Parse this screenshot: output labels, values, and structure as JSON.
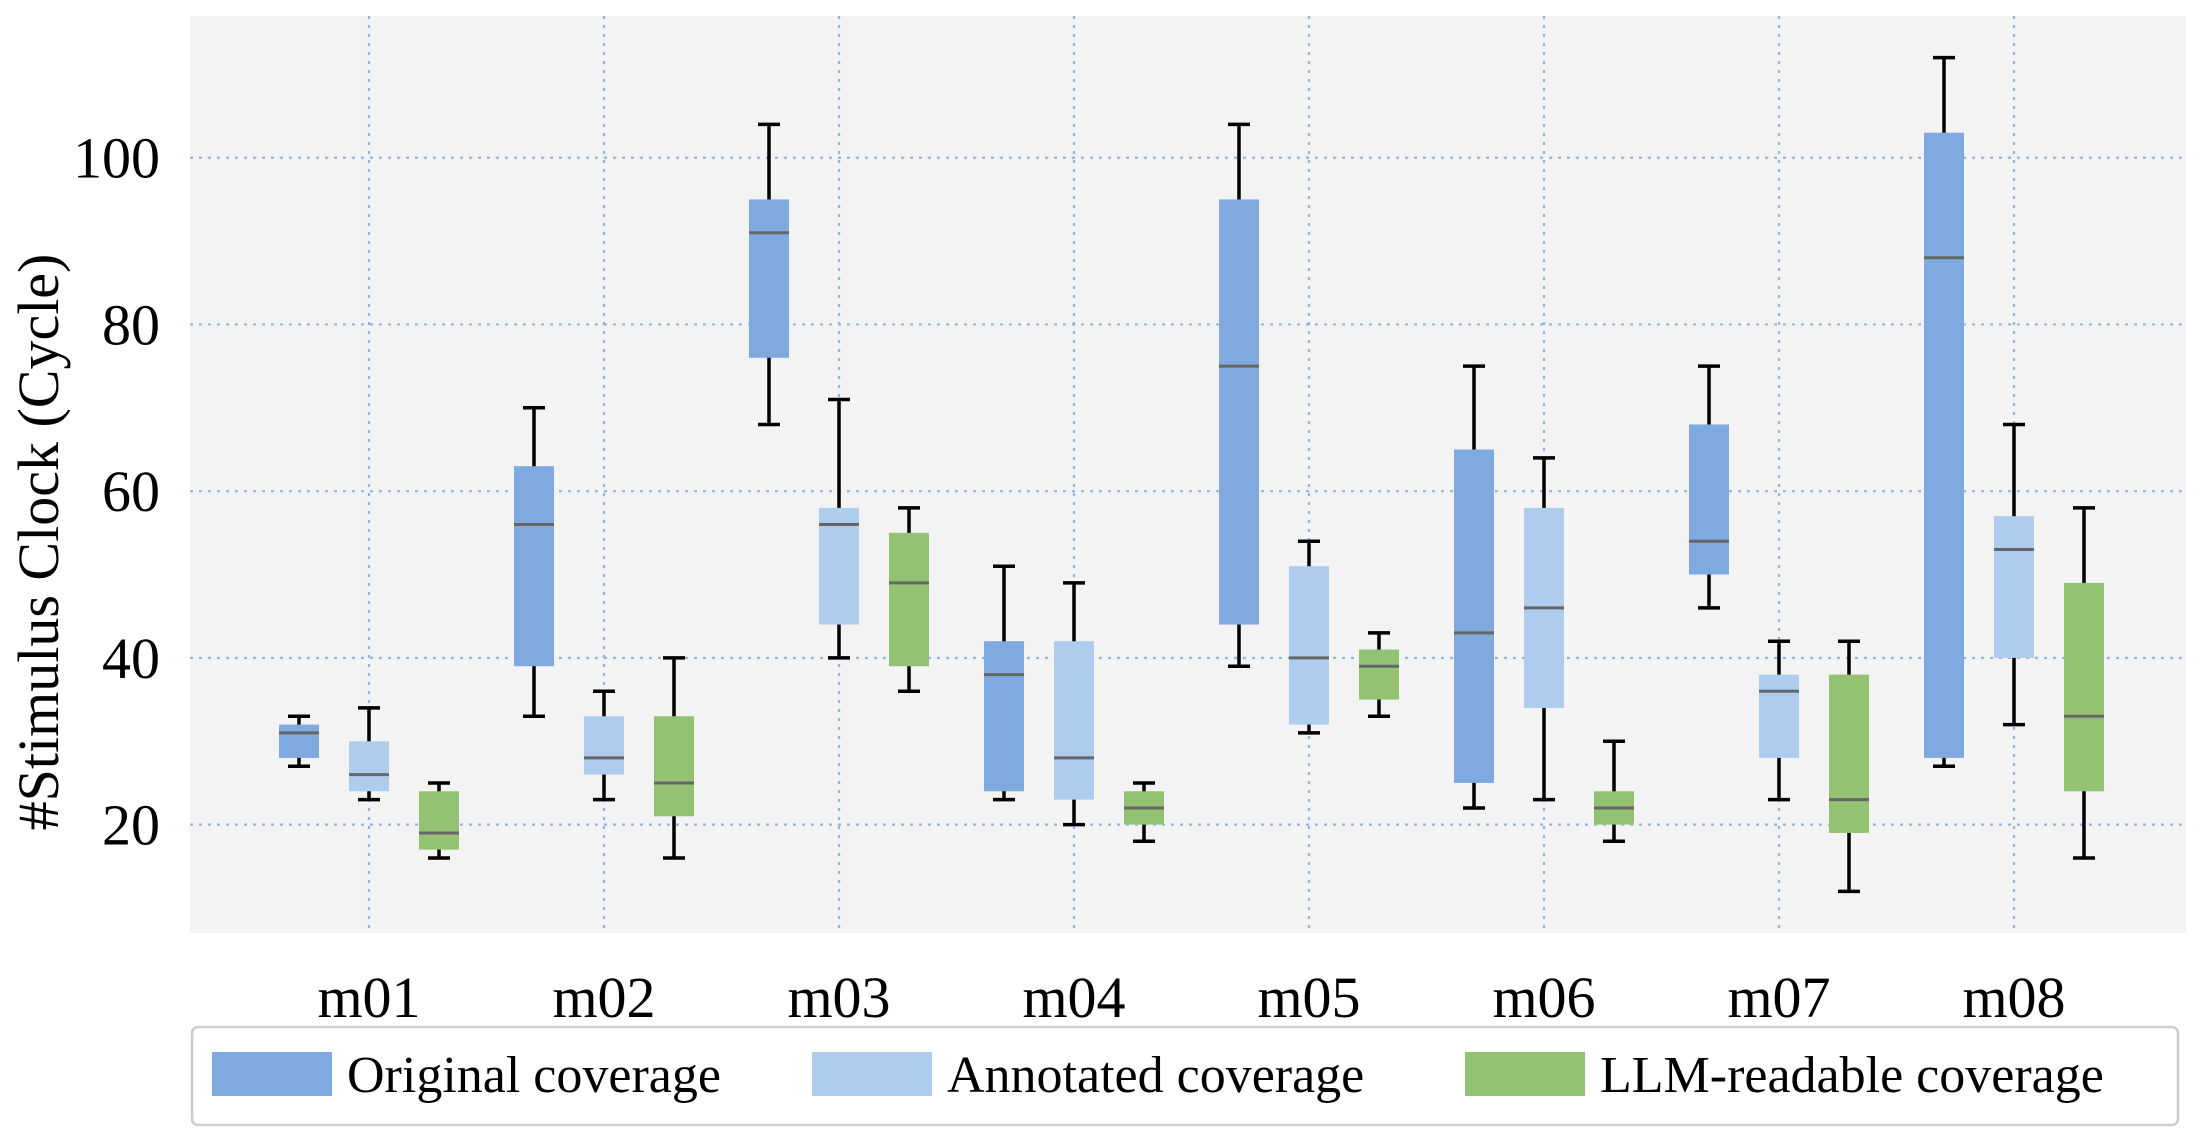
{
  "chart_data": {
    "type": "box",
    "title": "",
    "xlabel": "",
    "ylabel": "#Stimulus Clock (Cycle)",
    "ylim": [
      7,
      117
    ],
    "yticks": [
      20,
      40,
      60,
      80,
      100
    ],
    "grid": true,
    "legend_position": "bottom",
    "categories": [
      "m01",
      "m02",
      "m03",
      "m04",
      "m05",
      "m06",
      "m07",
      "m08"
    ],
    "series": [
      {
        "name": "Original coverage",
        "color": "#7eaadf",
        "boxes": [
          {
            "whislo": 27,
            "q1": 28,
            "med": 31,
            "q3": 32,
            "whishi": 33
          },
          {
            "whislo": 33,
            "q1": 39,
            "med": 56,
            "q3": 63,
            "whishi": 70
          },
          {
            "whislo": 68,
            "q1": 76,
            "med": 91,
            "q3": 95,
            "whishi": 104
          },
          {
            "whislo": 23,
            "q1": 24,
            "med": 38,
            "q3": 42,
            "whishi": 51
          },
          {
            "whislo": 39,
            "q1": 44,
            "med": 75,
            "q3": 95,
            "whishi": 104
          },
          {
            "whislo": 22,
            "q1": 25,
            "med": 43,
            "q3": 65,
            "whishi": 75
          },
          {
            "whislo": 46,
            "q1": 50,
            "med": 54,
            "q3": 68,
            "whishi": 75
          },
          {
            "whislo": 27,
            "q1": 28,
            "med": 88,
            "q3": 103,
            "whishi": 112
          }
        ]
      },
      {
        "name": "Annotated coverage",
        "color": "#aecdee",
        "boxes": [
          {
            "whislo": 23,
            "q1": 24,
            "med": 26,
            "q3": 30,
            "whishi": 34
          },
          {
            "whislo": 23,
            "q1": 26,
            "med": 28,
            "q3": 33,
            "whishi": 36
          },
          {
            "whislo": 40,
            "q1": 44,
            "med": 56,
            "q3": 58,
            "whishi": 71
          },
          {
            "whislo": 20,
            "q1": 23,
            "med": 28,
            "q3": 42,
            "whishi": 49
          },
          {
            "whislo": 31,
            "q1": 32,
            "med": 40,
            "q3": 51,
            "whishi": 54
          },
          {
            "whislo": 23,
            "q1": 34,
            "med": 46,
            "q3": 58,
            "whishi": 64
          },
          {
            "whislo": 23,
            "q1": 28,
            "med": 36,
            "q3": 38,
            "whishi": 42
          },
          {
            "whislo": 32,
            "q1": 40,
            "med": 53,
            "q3": 57,
            "whishi": 68
          }
        ]
      },
      {
        "name": "LLM-readable coverage",
        "color": "#94c273",
        "boxes": [
          {
            "whislo": 16,
            "q1": 17,
            "med": 19,
            "q3": 24,
            "whishi": 25
          },
          {
            "whislo": 16,
            "q1": 21,
            "med": 25,
            "q3": 33,
            "whishi": 40
          },
          {
            "whislo": 36,
            "q1": 39,
            "med": 49,
            "q3": 55,
            "whishi": 58
          },
          {
            "whislo": 18,
            "q1": 20,
            "med": 22,
            "q3": 24,
            "whishi": 25
          },
          {
            "whislo": 33,
            "q1": 35,
            "med": 39,
            "q3": 41,
            "whishi": 43
          },
          {
            "whislo": 18,
            "q1": 20,
            "med": 22,
            "q3": 24,
            "whishi": 30
          },
          {
            "whislo": 12,
            "q1": 19,
            "med": 23,
            "q3": 38,
            "whishi": 42
          },
          {
            "whislo": 16,
            "q1": 24,
            "med": 33,
            "q3": 49,
            "whishi": 58
          }
        ]
      }
    ]
  }
}
